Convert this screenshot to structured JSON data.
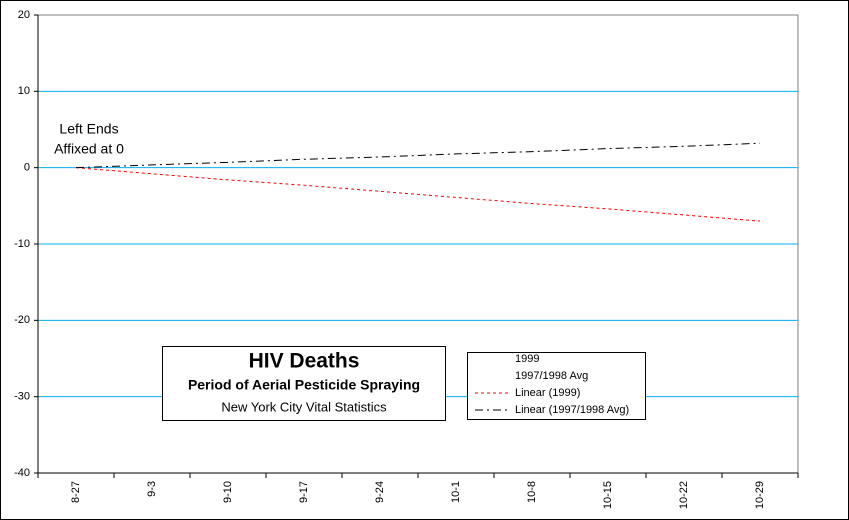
{
  "chart_data": {
    "type": "line",
    "title": "HIV Deaths",
    "subtitle": "Period of Aerial Pesticide Spraying",
    "source": "New York City Vital Statistics",
    "annotations": [
      "Left Ends",
      "Affixed at 0"
    ],
    "categories": [
      "8-27",
      "9-3",
      "9-10",
      "9-17",
      "9-24",
      "10-1",
      "10-8",
      "10-15",
      "10-22",
      "10-29"
    ],
    "series": [
      {
        "name": "1999",
        "values": [
          null,
          null,
          null,
          null,
          null,
          null,
          null,
          null,
          null,
          null
        ]
      },
      {
        "name": "1997/1998 Avg",
        "values": [
          null,
          null,
          null,
          null,
          null,
          null,
          null,
          null,
          null,
          null
        ]
      },
      {
        "name": "Linear (1999)",
        "color": "#ff0000",
        "dash": "3,3",
        "values": [
          0,
          -0.8,
          -1.6,
          -2.3,
          -3.1,
          -3.9,
          -4.7,
          -5.4,
          -6.2,
          -7.0
        ]
      },
      {
        "name": "Linear (1997/1998 Avg)",
        "color": "#000000",
        "dash": "8,4,2,4",
        "values": [
          0,
          0.36,
          0.7,
          1.1,
          1.4,
          1.8,
          2.1,
          2.5,
          2.8,
          3.2
        ]
      }
    ],
    "ylim": [
      -40,
      20
    ],
    "yticks": [
      -40,
      -30,
      -20,
      -10,
      0,
      10,
      20
    ],
    "grid": true,
    "grid_color": "#00b0f0"
  }
}
